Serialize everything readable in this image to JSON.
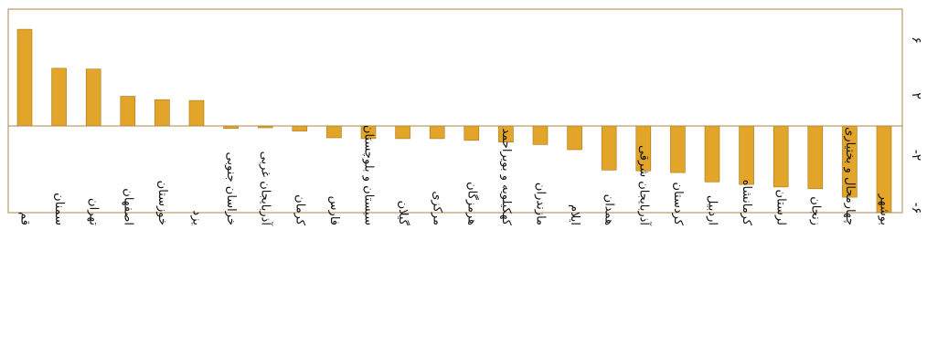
{
  "chart_data": {
    "type": "bar",
    "title": "",
    "xlabel": "",
    "ylabel": "",
    "ylim": [
      -6,
      6
    ],
    "yticks": [
      {
        "value": 6,
        "label": "۶"
      },
      {
        "value": 2,
        "label": "۲"
      },
      {
        "value": -2,
        "label": "-۲"
      },
      {
        "value": -6,
        "label": "-۶"
      }
    ],
    "categories": [
      "قم",
      "سمنان",
      "تهران",
      "اصفهان",
      "خوزستان",
      "یزد",
      "خراسان جنوبی",
      "آذربایجان غربی",
      "کرمان",
      "فارس",
      "سیستان و بلوچستان",
      "گیلان",
      "مرکزی",
      "هرمزگان",
      "کهکیلویه و بویراحمد",
      "مازندران",
      "ایلام",
      "همدان",
      "آذربایجان شرقی",
      "کردستان",
      "اردبیل",
      "کرمانشاه",
      "لرستان",
      "زنجان",
      "چهارمحال و بختیاری",
      "بوشهر"
    ],
    "values": [
      5.7,
      3.4,
      3.35,
      1.75,
      1.55,
      1.5,
      -0.15,
      -0.1,
      -0.3,
      -0.7,
      -0.75,
      -0.75,
      -0.75,
      -0.85,
      -0.95,
      -1.1,
      -1.4,
      -2.6,
      -2.65,
      -2.75,
      -3.3,
      -3.45,
      -3.6,
      -3.7,
      -4.2,
      -5.1
    ],
    "bar_color": "#e2a52a",
    "bar_edge_color": "#a9761a",
    "axis_color": "#b08648",
    "grid": false,
    "legend": "none"
  }
}
